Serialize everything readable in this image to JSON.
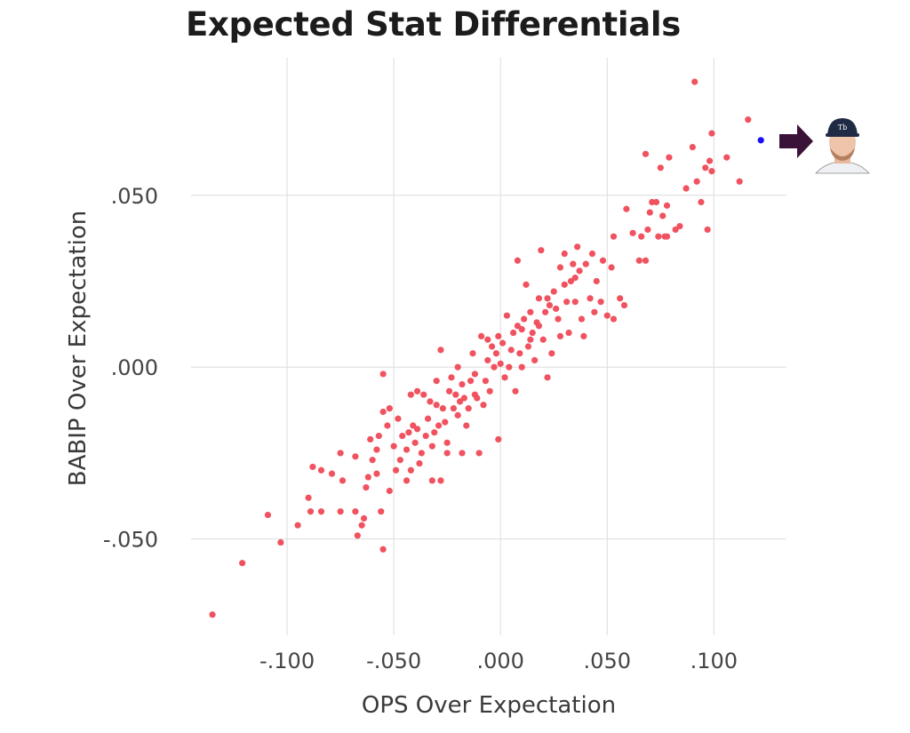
{
  "chart_data": {
    "type": "scatter",
    "title": "Expected Stat Differentials",
    "xlabel": "OPS Over Expectation",
    "ylabel": "BABIP Over Expectation",
    "xlim": [
      -0.145,
      0.134
    ],
    "ylim": [
      -0.078,
      0.09
    ],
    "grid": true,
    "x_ticks": [
      {
        "v": -0.1,
        "label": "-.100"
      },
      {
        "v": -0.05,
        "label": "-.050"
      },
      {
        "v": 0,
        "label": ".000"
      },
      {
        "v": 0.05,
        "label": ".050"
      },
      {
        "v": 0.1,
        "label": ".100"
      }
    ],
    "y_ticks": [
      {
        "v": 0.05,
        "label": ".050"
      },
      {
        "v": 0,
        "label": ".000"
      },
      {
        "v": -0.05,
        "label": "-.050"
      }
    ],
    "colors": {
      "points": "#f0525f",
      "highlight": "#1a0ff0",
      "arrow": "#3b1238",
      "grid": "#dddddd"
    },
    "highlight": {
      "x": 0.122,
      "y": 0.066,
      "marker": "player-headshot"
    },
    "points": [
      [
        -0.135,
        -0.072
      ],
      [
        -0.121,
        -0.057
      ],
      [
        -0.109,
        -0.043
      ],
      [
        -0.103,
        -0.051
      ],
      [
        -0.095,
        -0.046
      ],
      [
        -0.09,
        -0.038
      ],
      [
        -0.089,
        -0.042
      ],
      [
        -0.088,
        -0.029
      ],
      [
        -0.084,
        -0.042
      ],
      [
        -0.084,
        -0.03
      ],
      [
        -0.079,
        -0.031
      ],
      [
        -0.075,
        -0.042
      ],
      [
        -0.075,
        -0.025
      ],
      [
        -0.074,
        -0.033
      ],
      [
        -0.068,
        -0.042
      ],
      [
        -0.067,
        -0.049
      ],
      [
        -0.068,
        -0.026
      ],
      [
        -0.065,
        -0.046
      ],
      [
        -0.064,
        -0.044
      ],
      [
        -0.063,
        -0.035
      ],
      [
        -0.062,
        -0.032
      ],
      [
        -0.061,
        -0.021
      ],
      [
        -0.06,
        -0.027
      ],
      [
        -0.058,
        -0.024
      ],
      [
        -0.056,
        -0.042
      ],
      [
        -0.055,
        -0.002
      ],
      [
        -0.055,
        -0.053
      ],
      [
        -0.057,
        -0.02
      ],
      [
        -0.052,
        -0.036
      ],
      [
        -0.055,
        -0.013
      ],
      [
        -0.052,
        -0.012
      ],
      [
        -0.053,
        -0.017
      ],
      [
        -0.05,
        -0.023
      ],
      [
        -0.047,
        -0.027
      ],
      [
        -0.046,
        -0.02
      ],
      [
        -0.044,
        -0.033
      ],
      [
        -0.043,
        -0.019
      ],
      [
        -0.042,
        -0.008
      ],
      [
        -0.042,
        -0.03
      ],
      [
        -0.041,
        -0.017
      ],
      [
        -0.04,
        -0.022
      ],
      [
        -0.039,
        -0.007
      ],
      [
        -0.039,
        -0.018
      ],
      [
        -0.037,
        -0.025
      ],
      [
        -0.036,
        -0.008
      ],
      [
        -0.034,
        -0.015
      ],
      [
        -0.032,
        -0.033
      ],
      [
        -0.032,
        -0.023
      ],
      [
        -0.031,
        -0.019
      ],
      [
        -0.03,
        -0.004
      ],
      [
        -0.03,
        -0.011
      ],
      [
        -0.029,
        -0.017
      ],
      [
        -0.028,
        0.005
      ],
      [
        -0.028,
        -0.033
      ],
      [
        -0.027,
        -0.012
      ],
      [
        -0.025,
        -0.022
      ],
      [
        -0.025,
        -0.025
      ],
      [
        -0.024,
        -0.007
      ],
      [
        -0.023,
        -0.003
      ],
      [
        -0.022,
        -0.012
      ],
      [
        -0.021,
        -0.008
      ],
      [
        -0.02,
        0.0
      ],
      [
        -0.018,
        -0.025
      ],
      [
        -0.018,
        -0.005
      ],
      [
        -0.017,
        -0.009
      ],
      [
        -0.016,
        -0.017
      ],
      [
        -0.015,
        -0.012
      ],
      [
        -0.014,
        -0.004
      ],
      [
        -0.013,
        0.004
      ],
      [
        -0.012,
        -0.008
      ],
      [
        -0.011,
        -0.009
      ],
      [
        -0.01,
        -0.025
      ],
      [
        -0.009,
        0.009
      ],
      [
        -0.008,
        -0.011
      ],
      [
        -0.007,
        -0.004
      ],
      [
        -0.006,
        0.002
      ],
      [
        -0.005,
        -0.007
      ],
      [
        -0.004,
        0.006
      ],
      [
        -0.003,
        0.0
      ],
      [
        -0.002,
        0.004
      ],
      [
        -0.001,
        -0.021
      ],
      [
        -0.001,
        0.009
      ],
      [
        0.0,
        0.001
      ],
      [
        0.001,
        0.007
      ],
      [
        0.002,
        -0.003
      ],
      [
        0.003,
        0.015
      ],
      [
        0.005,
        0.005
      ],
      [
        0.006,
        0.01
      ],
      [
        0.007,
        -0.007
      ],
      [
        0.008,
        0.031
      ],
      [
        0.009,
        0.004
      ],
      [
        0.01,
        0.011
      ],
      [
        0.01,
        0.0
      ],
      [
        0.011,
        0.014
      ],
      [
        0.012,
        0.024
      ],
      [
        0.013,
        0.006
      ],
      [
        0.014,
        0.016
      ],
      [
        0.015,
        0.01
      ],
      [
        0.016,
        0.002
      ],
      [
        0.017,
        0.013
      ],
      [
        0.018,
        0.02
      ],
      [
        0.019,
        0.034
      ],
      [
        0.02,
        0.008
      ],
      [
        0.021,
        0.016
      ],
      [
        0.022,
        -0.003
      ],
      [
        0.023,
        0.018
      ],
      [
        0.024,
        0.004
      ],
      [
        0.025,
        0.022
      ],
      [
        0.027,
        0.014
      ],
      [
        0.028,
        0.029
      ],
      [
        0.028,
        0.009
      ],
      [
        0.03,
        0.033
      ],
      [
        0.031,
        0.019
      ],
      [
        0.032,
        0.01
      ],
      [
        0.033,
        0.025
      ],
      [
        0.034,
        0.03
      ],
      [
        0.035,
        0.019
      ],
      [
        0.036,
        0.035
      ],
      [
        0.037,
        0.028
      ],
      [
        0.038,
        0.014
      ],
      [
        0.039,
        0.009
      ],
      [
        0.04,
        0.03
      ],
      [
        0.042,
        0.02
      ],
      [
        0.043,
        0.033
      ],
      [
        0.044,
        0.016
      ],
      [
        0.045,
        0.025
      ],
      [
        0.047,
        0.019
      ],
      [
        0.048,
        0.031
      ],
      [
        0.05,
        0.015
      ],
      [
        0.052,
        0.029
      ],
      [
        0.053,
        0.014
      ],
      [
        0.053,
        0.038
      ],
      [
        0.056,
        0.02
      ],
      [
        0.058,
        0.018
      ],
      [
        0.059,
        0.046
      ],
      [
        0.062,
        0.039
      ],
      [
        0.065,
        0.031
      ],
      [
        0.066,
        0.038
      ],
      [
        0.068,
        0.031
      ],
      [
        0.068,
        0.062
      ],
      [
        0.069,
        0.04
      ],
      [
        0.07,
        0.045
      ],
      [
        0.071,
        0.048
      ],
      [
        0.073,
        0.048
      ],
      [
        0.074,
        0.038
      ],
      [
        0.075,
        0.058
      ],
      [
        0.076,
        0.044
      ],
      [
        0.077,
        0.038
      ],
      [
        0.078,
        0.047
      ],
      [
        0.079,
        0.061
      ],
      [
        0.078,
        0.038
      ],
      [
        0.082,
        0.04
      ],
      [
        0.084,
        0.041
      ],
      [
        0.087,
        0.052
      ],
      [
        0.09,
        0.064
      ],
      [
        0.091,
        0.083
      ],
      [
        0.092,
        0.054
      ],
      [
        0.094,
        0.048
      ],
      [
        0.096,
        0.058
      ],
      [
        0.097,
        0.04
      ],
      [
        0.098,
        0.06
      ],
      [
        0.099,
        0.057
      ],
      [
        0.099,
        0.068
      ],
      [
        0.106,
        0.061
      ],
      [
        0.112,
        0.054
      ],
      [
        0.116,
        0.072
      ],
      [
        -0.048,
        -0.015
      ],
      [
        -0.044,
        -0.024
      ],
      [
        -0.035,
        -0.02
      ],
      [
        -0.026,
        -0.016
      ],
      [
        -0.019,
        -0.01
      ],
      [
        -0.012,
        -0.002
      ],
      [
        -0.006,
        0.008
      ],
      [
        0.004,
        0.0
      ],
      [
        0.008,
        0.012
      ],
      [
        0.014,
        0.008
      ],
      [
        0.018,
        0.012
      ],
      [
        0.022,
        0.02
      ],
      [
        0.026,
        0.017
      ],
      [
        0.03,
        0.024
      ],
      [
        0.035,
        0.026
      ],
      [
        -0.058,
        -0.031
      ],
      [
        -0.049,
        -0.03
      ],
      [
        -0.038,
        -0.028
      ],
      [
        -0.033,
        -0.01
      ],
      [
        -0.02,
        -0.014
      ]
    ]
  }
}
